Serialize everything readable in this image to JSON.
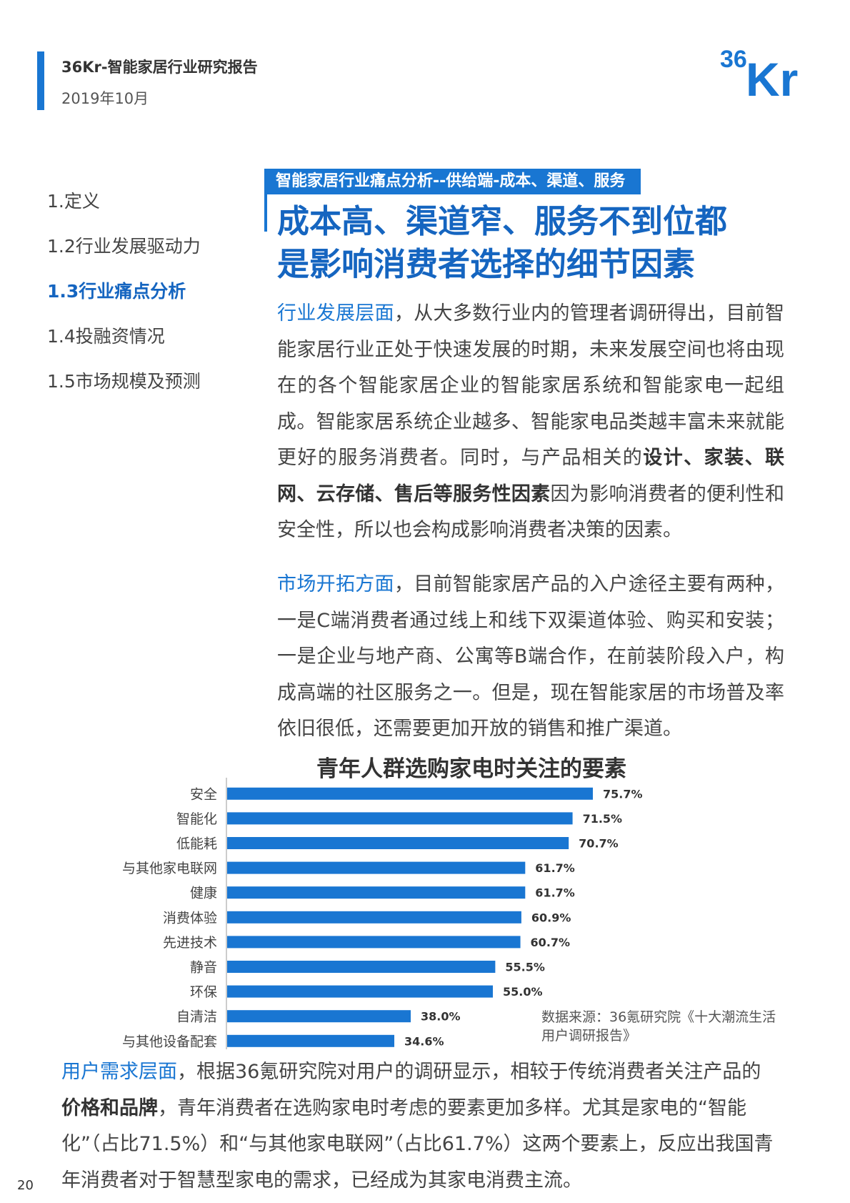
{
  "header": {
    "title": "36Kr-智能家居行业研究报告",
    "date": "2019年10月",
    "logo_text": "36Kr",
    "accent": "#1976d2"
  },
  "nav": {
    "items": [
      {
        "label": "1.定义"
      },
      {
        "label": "1.2行业发展驱动力"
      },
      {
        "label": "1.3行业痛点分析",
        "active": true
      },
      {
        "label": "1.4投融资情况"
      },
      {
        "label": "1.5市场规模及预测"
      }
    ]
  },
  "section": {
    "tag": "智能家居行业痛点分析--供给端-成本、渠道、服务",
    "headline_line1": "成本高、渠道窄、服务不到位都",
    "headline_line2": "是影响消费者选择的细节因素"
  },
  "para1": {
    "lead": "行业发展层面",
    "text1": "，从大多数行业内的管理者调研得出，目前智能家居行业正处于快速发展的时期，未来发展空间也将由现在的各个智能家居企业的智能家居系统和智能家电一起组成。智能家居系统企业越多、智能家电品类越丰富未来就能更好的服务消费者。同时，与产品相关的",
    "bold": "设计、家装、联网、云存储、售后等服务性因素",
    "text2": "因为影响消费者的便利性和安全性，所以也会构成影响消费者决策的因素。"
  },
  "para2": {
    "lead": "市场开拓方面",
    "text": "，目前智能家居产品的入户途径主要有两种，一是C端消费者通过线上和线下双渠道体验、购买和安装；一是企业与地产商、公寓等B端合作，在前装阶段入户，构成高端的社区服务之一。但是，现在智能家居的市场普及率依旧很低，还需要更加开放的销售和推广渠道。"
  },
  "chart_data": {
    "type": "bar",
    "orientation": "horizontal",
    "title": "青年人群选购家电时关注的要素",
    "categories": [
      "安全",
      "智能化",
      "低能耗",
      "与其他家电联网",
      "健康",
      "消费体验",
      "先进技术",
      "静音",
      "环保",
      "自清洁",
      "与其他设备配套"
    ],
    "values": [
      75.7,
      71.5,
      70.7,
      61.7,
      61.7,
      60.9,
      60.7,
      55.5,
      55.0,
      38.0,
      34.6
    ],
    "labels": [
      "75.7%",
      "71.5%",
      "70.7%",
      "61.7%",
      "61.7%",
      "60.9%",
      "60.7%",
      "55.5%",
      "55.0%",
      "38.0%",
      "34.6%"
    ],
    "xlim": [
      0,
      100
    ],
    "bar_color": "#1976d2",
    "grid": false,
    "legend": "none"
  },
  "source": "数据来源：36氪研究院《十大潮流生活用户调研报告》",
  "para3": {
    "lead": "用户需求层面",
    "text1": "，根据36氪研究院对用户的调研显示，相较于传统消费者关注产品的",
    "bold": "价格和品牌",
    "text2": "，青年消费者在选购家电时考虑的要素更加多样。尤其是家电的“智能化”（占比71.5%）和“与其他家电联网”（占比61.7%）这两个要素上，反应出我国青年消费者对于智慧型家电的需求，已经成为其家电消费主流。"
  },
  "page_number": "20",
  "page_number_faint": "20"
}
